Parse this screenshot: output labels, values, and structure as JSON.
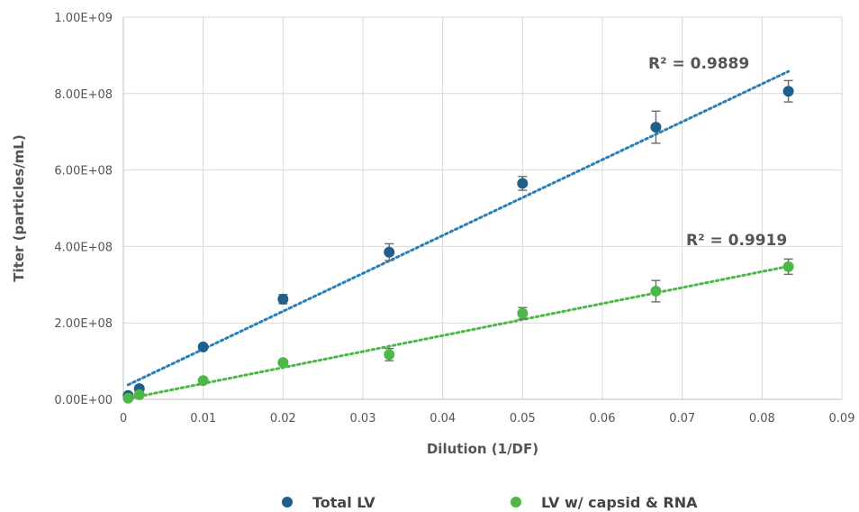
{
  "chart_data": {
    "type": "scatter",
    "xlabel": "Dilution (1/DF)",
    "ylabel": "Titer (particles/mL)",
    "xlim": [
      0,
      0.09
    ],
    "ylim": [
      0,
      1000000000
    ],
    "x_ticks": [
      0,
      0.01,
      0.02,
      0.03,
      0.04,
      0.05,
      0.06,
      0.07,
      0.08,
      0.09
    ],
    "x_tick_labels": [
      "0",
      "0.01",
      "0.02",
      "0.03",
      "0.04",
      "0.05",
      "0.06",
      "0.07",
      "0.08",
      "0.09"
    ],
    "y_ticks": [
      0,
      200000000,
      400000000,
      600000000,
      800000000,
      1000000000
    ],
    "y_tick_labels": [
      "0.00E+00",
      "2.00E+08",
      "4.00E+08",
      "6.00E+08",
      "8.00E+08",
      "1.00E+09"
    ],
    "grid": true,
    "legend_position": "bottom",
    "series": [
      {
        "name": "Total LV",
        "color": "#1f5f8b",
        "trend_color": "#2a7fb8",
        "points": [
          {
            "x": 0.0006,
            "y": 10000000,
            "err": 0
          },
          {
            "x": 0.002,
            "y": 28000000,
            "err": 0
          },
          {
            "x": 0.01,
            "y": 137000000,
            "err": 6000000
          },
          {
            "x": 0.02,
            "y": 262000000,
            "err": 12000000
          },
          {
            "x": 0.0333,
            "y": 385000000,
            "err": 22000000
          },
          {
            "x": 0.05,
            "y": 565000000,
            "err": 18000000
          },
          {
            "x": 0.0667,
            "y": 712000000,
            "err": 42000000
          },
          {
            "x": 0.0833,
            "y": 806000000,
            "err": 28000000
          }
        ],
        "trendline": [
          [
            0.0006,
            38000000
          ],
          [
            0.0833,
            858000000
          ]
        ],
        "r2_label": "R² = 0.9889"
      },
      {
        "name": "LV w/ capsid & RNA",
        "color": "#4cb848",
        "trend_color": "#4cb848",
        "points": [
          {
            "x": 0.0006,
            "y": 3000000,
            "err": 0
          },
          {
            "x": 0.002,
            "y": 12000000,
            "err": 0
          },
          {
            "x": 0.01,
            "y": 49000000,
            "err": 4000000
          },
          {
            "x": 0.02,
            "y": 96000000,
            "err": 6000000
          },
          {
            "x": 0.0333,
            "y": 117000000,
            "err": 16000000
          },
          {
            "x": 0.05,
            "y": 225000000,
            "err": 15000000
          },
          {
            "x": 0.0667,
            "y": 283000000,
            "err": 28000000
          },
          {
            "x": 0.0833,
            "y": 347000000,
            "err": 20000000
          }
        ],
        "trendline": [
          [
            0.0006,
            2000000
          ],
          [
            0.0833,
            348000000
          ]
        ],
        "r2_label": "R² = 0.9919"
      }
    ]
  }
}
